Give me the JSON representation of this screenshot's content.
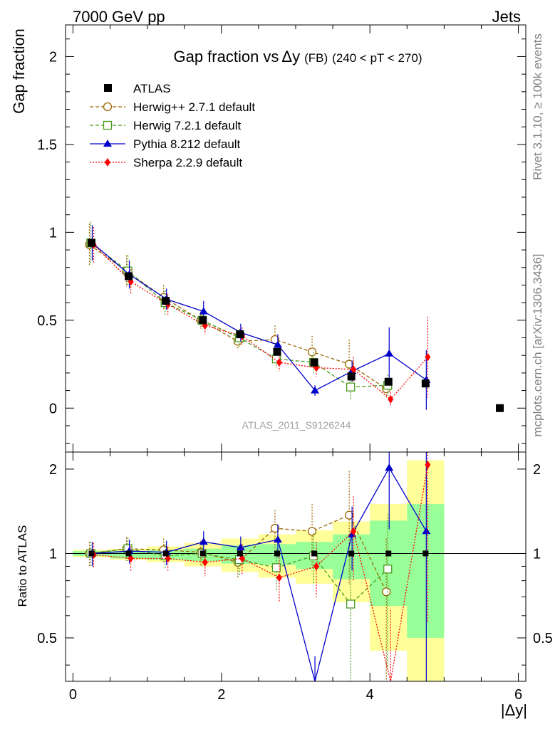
{
  "header": {
    "left_label": "7000 GeV pp",
    "right_label": "Jets"
  },
  "side_labels": {
    "rivet": "Rivet 3.1.10, ≥ 100k events",
    "mcplots": "mcplots.cern.ch [arXiv:1306.3436]"
  },
  "chart_data": {
    "type": "line",
    "title_main": "Gap fraction vs",
    "title_var": "Δy",
    "title_fb": "(FB)",
    "title_range": "(240 < pT < 270)",
    "analysis_id": "ATLAS_2011_S9126244",
    "ylabel_top": "Gap fraction",
    "ylabel_bottom": "Ratio to ATLAS",
    "xlabel": "|Δy|",
    "xlim": [
      -0.1,
      6.1
    ],
    "ylim_top": [
      -0.25,
      2.18
    ],
    "ylim_bottom": [
      0.35,
      2.3
    ],
    "xticks": [
      "0",
      "2",
      "4",
      "6"
    ],
    "yticks_top": [
      "0",
      "0.5",
      "1",
      "1.5",
      "2"
    ],
    "yticks_bottom": [
      "0.5",
      "1",
      "2"
    ],
    "x": [
      0.25,
      0.75,
      1.25,
      1.75,
      2.25,
      2.75,
      3.25,
      3.75,
      4.25,
      4.75
    ],
    "data": {
      "name": "ATLAS",
      "x": [
        0.25,
        0.75,
        1.25,
        1.75,
        2.25,
        2.75,
        3.25,
        3.75,
        4.25,
        4.75,
        5.75
      ],
      "y": [
        0.94,
        0.75,
        0.61,
        0.5,
        0.42,
        0.32,
        0.26,
        0.18,
        0.15,
        0.14,
        0.0
      ]
    },
    "band_edges": [
      0,
      0.5,
      1.0,
      1.5,
      2.0,
      2.5,
      3.0,
      3.5,
      4.0,
      4.5,
      5.0
    ],
    "band_inner": [
      [
        0.98,
        1.02
      ],
      [
        0.96,
        1.02
      ],
      [
        0.95,
        1.03
      ],
      [
        0.94,
        1.04
      ],
      [
        0.92,
        1.07
      ],
      [
        0.91,
        1.08
      ],
      [
        0.88,
        1.1
      ],
      [
        0.81,
        1.17
      ],
      [
        0.65,
        1.31
      ],
      [
        0.5,
        1.5
      ]
    ],
    "band_outer": [
      [
        0.97,
        1.03
      ],
      [
        0.95,
        1.04
      ],
      [
        0.93,
        1.06
      ],
      [
        0.9,
        1.09
      ],
      [
        0.86,
        1.13
      ],
      [
        0.82,
        1.17
      ],
      [
        0.78,
        1.21
      ],
      [
        0.67,
        1.3
      ],
      [
        0.45,
        1.5
      ],
      [
        0.3,
        2.15
      ]
    ],
    "series": [
      {
        "name": "Herwig++ 2.7.1 default",
        "color": "#996600",
        "marker": "open-circle",
        "dash": "5,3",
        "y": [
          0.93,
          0.78,
          0.63,
          0.5,
          0.38,
          0.39,
          0.32,
          0.25,
          0.11,
          null
        ],
        "err": [
          0.12,
          0.09,
          0.07,
          0.05,
          0.05,
          0.08,
          0.09,
          0.14,
          0.05,
          null
        ],
        "ratio": [
          1.0,
          1.04,
          1.03,
          1.01,
          0.93,
          1.23,
          1.2,
          1.37,
          0.73,
          null
        ],
        "ratio_err": [
          0.1,
          0.1,
          0.1,
          0.1,
          0.12,
          0.2,
          0.3,
          0.6,
          0.4,
          null
        ]
      },
      {
        "name": "Herwig 7.2.1 default",
        "color": "#4a9b1c",
        "marker": "open-square",
        "dash": "5,3",
        "y": [
          0.94,
          0.78,
          0.6,
          0.5,
          0.4,
          0.28,
          0.26,
          0.12,
          0.13,
          null
        ],
        "err": [
          0.12,
          0.09,
          0.07,
          0.05,
          0.05,
          0.05,
          0.06,
          0.07,
          0.06,
          null
        ],
        "ratio": [
          1.0,
          1.04,
          0.98,
          1.0,
          0.95,
          0.89,
          0.98,
          0.66,
          0.88,
          null
        ],
        "ratio_err": [
          0.1,
          0.1,
          0.1,
          0.1,
          0.12,
          0.15,
          0.2,
          0.35,
          0.5,
          null
        ]
      },
      {
        "name": "Pythia 8.212 default",
        "color": "#0000cc",
        "marker": "filled-triangle",
        "dash": "",
        "y": [
          0.94,
          0.76,
          0.62,
          0.55,
          0.43,
          0.36,
          0.1,
          0.21,
          0.31,
          0.16
        ],
        "err": [
          0.1,
          0.08,
          0.06,
          0.06,
          0.05,
          0.06,
          0.03,
          0.06,
          0.15,
          0.17
        ],
        "ratio": [
          1.0,
          1.02,
          1.01,
          1.1,
          1.05,
          1.12,
          0.33,
          1.17,
          2.02,
          1.2
        ],
        "ratio_err": [
          0.1,
          0.1,
          0.1,
          0.1,
          0.1,
          0.15,
          0.1,
          0.3,
          0.8,
          1.2
        ]
      },
      {
        "name": "Sherpa 2.2.9 default",
        "color": "#ff0000",
        "marker": "filled-diamond",
        "dash": "2,2",
        "y": [
          0.93,
          0.72,
          0.59,
          0.47,
          0.41,
          0.26,
          0.23,
          0.22,
          0.05,
          0.29
        ],
        "err": [
          0.1,
          0.07,
          0.06,
          0.05,
          0.05,
          0.05,
          0.05,
          0.07,
          0.04,
          0.23
        ],
        "ratio": [
          0.99,
          0.96,
          0.96,
          0.93,
          0.96,
          0.82,
          0.9,
          1.2,
          0.33,
          2.07
        ],
        "ratio_err": [
          0.1,
          0.1,
          0.1,
          0.1,
          0.12,
          0.15,
          0.2,
          0.4,
          0.3,
          1.5
        ]
      }
    ]
  }
}
